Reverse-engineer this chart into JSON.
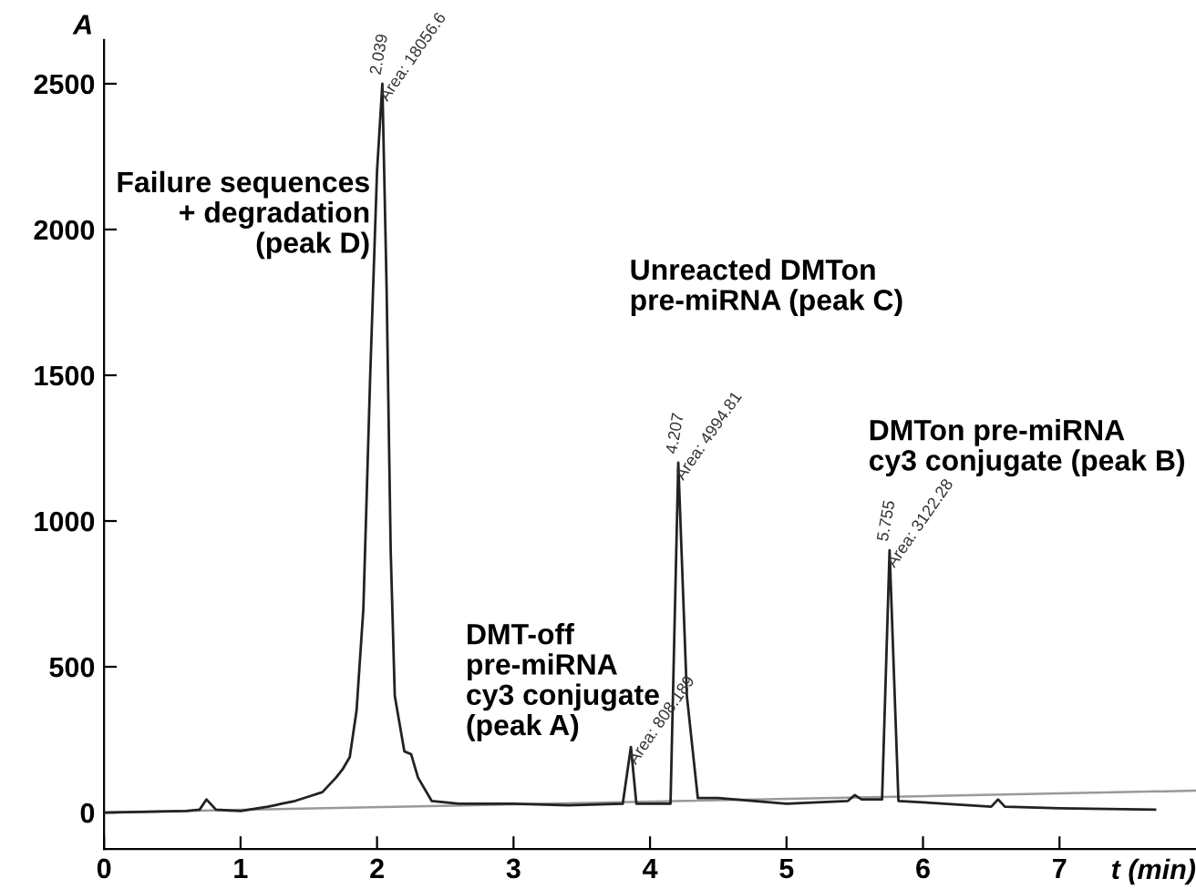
{
  "chart_data": {
    "type": "line",
    "xlabel": "t (min)",
    "ylabel": "A",
    "xlim": [
      0,
      8
    ],
    "ylim": [
      -125,
      2650
    ],
    "xticks": [
      0,
      1,
      2,
      3,
      4,
      5,
      6,
      7
    ],
    "yticks": [
      0,
      500,
      1000,
      1500,
      2000,
      2500
    ],
    "grid": false,
    "legend": false,
    "marker": "none",
    "line_style": "solid",
    "series": [
      {
        "color": "#222222",
        "x": [
          0,
          0.6,
          0.7,
          0.75,
          0.82,
          1.0,
          1.2,
          1.25,
          1.3,
          1.4,
          1.5,
          1.6,
          1.7,
          1.75,
          1.8,
          1.85,
          1.9,
          1.95,
          2.0,
          2.039,
          2.07,
          2.1,
          2.13,
          2.2,
          2.25,
          2.3,
          2.4,
          2.6,
          3.0,
          3.4,
          3.8,
          3.86,
          3.9,
          4.15,
          4.207,
          4.27,
          4.35,
          4.5,
          5.0,
          5.45,
          5.5,
          5.55,
          5.7,
          5.755,
          5.82,
          6.0,
          6.5,
          6.55,
          6.6,
          7.0,
          7.7
        ],
        "values": [
          0,
          5,
          10,
          45,
          10,
          5,
          20,
          25,
          30,
          40,
          55,
          70,
          120,
          150,
          190,
          350,
          700,
          1500,
          2200,
          2500,
          1800,
          900,
          400,
          210,
          200,
          120,
          40,
          30,
          30,
          25,
          30,
          225,
          30,
          30,
          1200,
          400,
          50,
          50,
          30,
          40,
          60,
          45,
          45,
          900,
          40,
          35,
          20,
          45,
          20,
          15,
          10
        ]
      },
      {
        "color": "#999999",
        "x": [
          0,
          8
        ],
        "values": [
          0,
          75
        ]
      }
    ],
    "annotations": [
      "Failure sequences\n+ degradation\n(peak D)",
      "Unreacted DMTon\npre-miRNA (peak C)",
      "DMTon pre-miRNA\ncy3 conjugate (peak B)",
      "DMT-off\npre-miRNA\ncy3 conjugate\n(peak A)",
      {
        "text": "2.039",
        "x": 2.039,
        "y": 2500
      },
      {
        "text": "Area: 18056.6",
        "x": 2.039,
        "y": 2500
      },
      {
        "text": "4.207",
        "x": 4.207,
        "y": 1200
      },
      {
        "text": "Area: 4994.81",
        "x": 4.207,
        "y": 1200
      },
      {
        "text": "5.755",
        "x": 5.755,
        "y": 900
      },
      {
        "text": "Area: 3122.28",
        "x": 5.755,
        "y": 900
      },
      {
        "text": "Area: 808.189",
        "x": 3.86,
        "y": 225
      }
    ]
  }
}
